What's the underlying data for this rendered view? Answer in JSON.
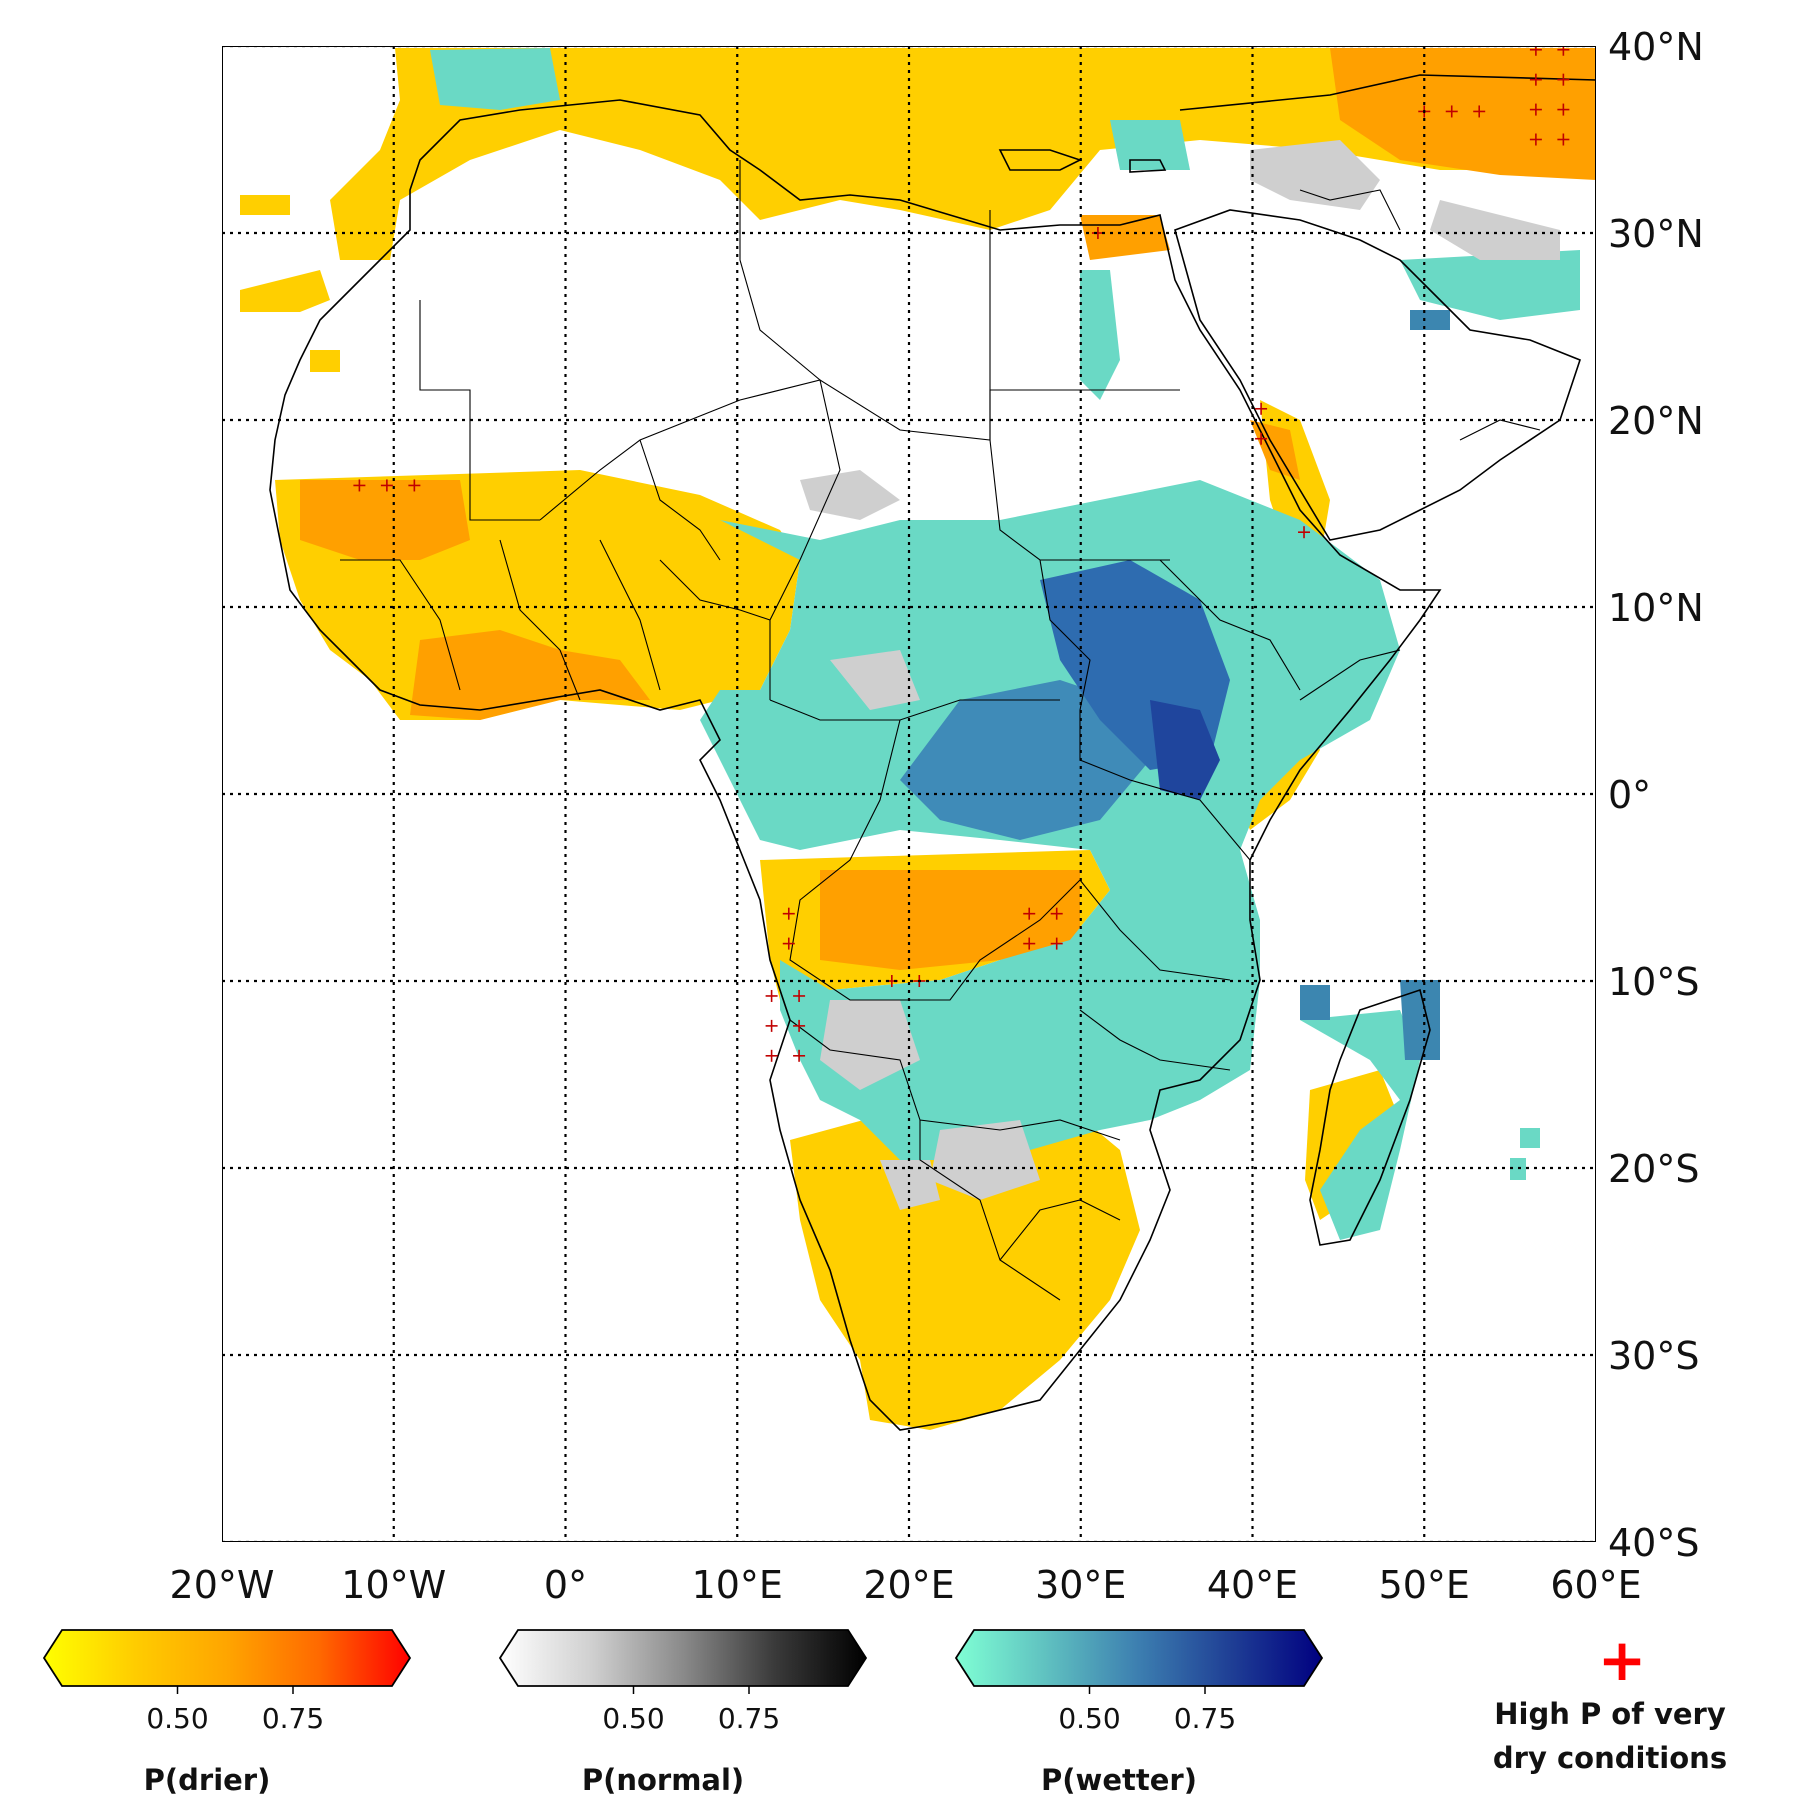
{
  "map": {
    "lat_labels": [
      "40°N",
      "30°N",
      "20°N",
      "10°N",
      "0°",
      "10°S",
      "20°S",
      "30°S",
      "40°S"
    ],
    "lon_labels": [
      "20°W",
      "10°W",
      "0°",
      "10°E",
      "20°E",
      "30°E",
      "40°E",
      "50°E",
      "60°E"
    ],
    "lon_range": [
      -20,
      60
    ],
    "lat_range": [
      -40,
      40
    ]
  },
  "colorbars": [
    {
      "title": "P(drier)",
      "ticks": [
        "0.50",
        "0.75"
      ],
      "colors": [
        "#ffff00",
        "#ffcc00",
        "#ffa500",
        "#ff6a00",
        "#ff0000"
      ]
    },
    {
      "title": "P(normal)",
      "ticks": [
        "0.50",
        "0.75"
      ],
      "colors": [
        "#ffffff",
        "#d0d0d0",
        "#8a8a8a",
        "#3a3a3a",
        "#000000"
      ]
    },
    {
      "title": "P(wetter)",
      "ticks": [
        "0.50",
        "0.75"
      ],
      "colors": [
        "#7fffd4",
        "#5fc0c0",
        "#3c7eb0",
        "#1f3f95",
        "#000080"
      ]
    }
  ],
  "legend": {
    "marker": "+",
    "marker_color": "#ff0000",
    "line1": "High P of very",
    "line2": "dry conditions"
  }
}
